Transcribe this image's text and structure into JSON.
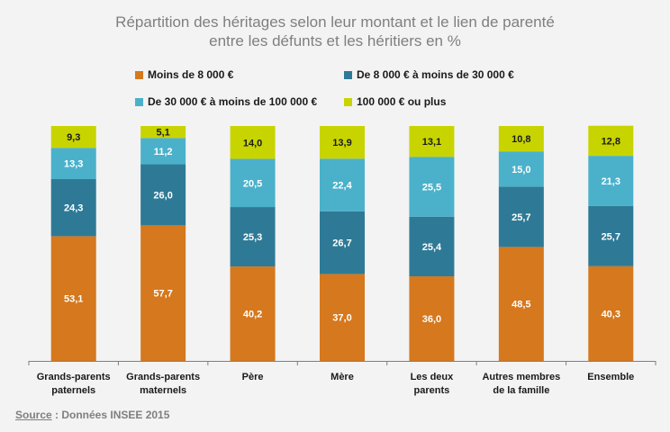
{
  "title_line1": "Répartition des héritages selon leur montant et le lien de parenté",
  "title_line2": "entre les défunts et les héritiers en %",
  "source_label": "Source",
  "source_text": " : Données INSEE 2015",
  "colors": {
    "orange": "#d5781e",
    "teal": "#2e7a96",
    "lightblue": "#4bb1ca",
    "yellow": "#c8d400",
    "axis": "#7f7f7f"
  },
  "chart_data": {
    "type": "bar",
    "stacked": true,
    "title": "Répartition des héritages selon leur montant et le lien de parenté entre les défunts et les héritiers en %",
    "categories": [
      [
        "Grands-parents",
        "paternels"
      ],
      [
        "Grands-parents",
        "maternels"
      ],
      [
        "Père"
      ],
      [
        "Mère"
      ],
      [
        "Les deux",
        "parents"
      ],
      [
        "Autres membres",
        "de la famille"
      ],
      [
        "Ensemble"
      ]
    ],
    "series": [
      {
        "name": "Moins de 8 000 €",
        "color": "#d5781e",
        "label_color": "#ffffff",
        "values": [
          53.1,
          57.7,
          40.2,
          37.0,
          36.0,
          48.5,
          40.3
        ],
        "labels": [
          "53,1",
          "57,7",
          "40,2",
          "37,0",
          "36,0",
          "48,5",
          "40,3"
        ]
      },
      {
        "name": "De 8 000 € à moins de 30 000 €",
        "color": "#2e7a96",
        "label_color": "#ffffff",
        "values": [
          24.3,
          26.0,
          25.3,
          26.7,
          25.4,
          25.7,
          25.7
        ],
        "labels": [
          "24,3",
          "26,0",
          "25,3",
          "26,7",
          "25,4",
          "25,7",
          "25,7"
        ]
      },
      {
        "name": "De 30 000  € à moins de 100 000 €",
        "color": "#4bb1ca",
        "label_color": "#ffffff",
        "values": [
          13.3,
          11.2,
          20.5,
          22.4,
          25.5,
          15.0,
          21.3
        ],
        "labels": [
          "13,3",
          "11,2",
          "20,5",
          "22,4",
          "25,5",
          "15,0",
          "21,3"
        ]
      },
      {
        "name": "100 000 € ou plus",
        "color": "#c8d400",
        "label_color": "#1a1a1a",
        "values": [
          9.3,
          5.1,
          14.0,
          13.9,
          13.1,
          10.8,
          12.8
        ],
        "labels": [
          "9,3",
          "5,1",
          "14,0",
          "13,9",
          "13,1",
          "10,8",
          "12,8"
        ]
      }
    ],
    "ylim": [
      0,
      100
    ],
    "xlabel": "",
    "ylabel": "",
    "legend": "top"
  }
}
